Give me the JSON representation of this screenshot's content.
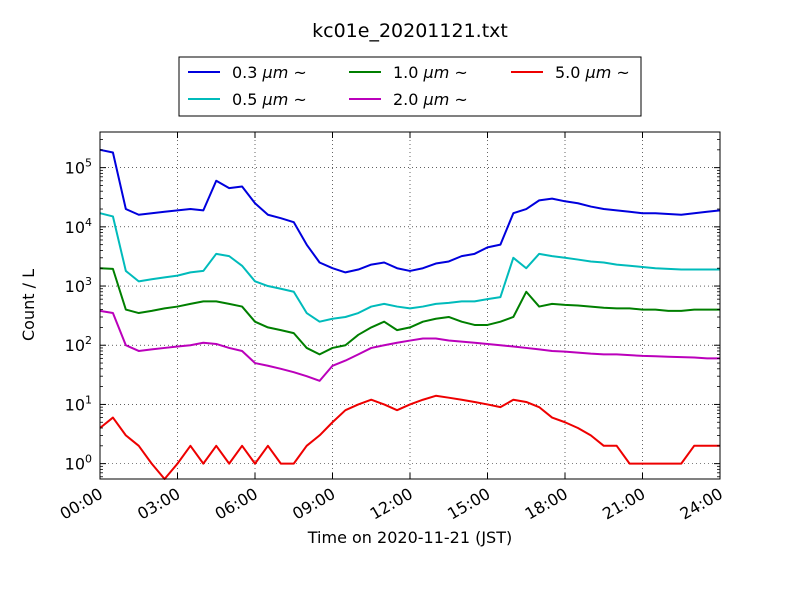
{
  "chart_data": {
    "type": "line",
    "title": "kc01e_20201121.txt",
    "xlabel": "Time on 2020-11-21 (JST)",
    "ylabel": "Count / L",
    "y_scale": "log",
    "ylim": [
      0.55,
      400000
    ],
    "xlim": [
      "00:00",
      "24:00"
    ],
    "x_ticks": [
      "00:00",
      "03:00",
      "06:00",
      "09:00",
      "12:00",
      "15:00",
      "18:00",
      "21:00",
      "24:00"
    ],
    "y_ticks": [
      {
        "value": 1,
        "base": "10",
        "exp": "0"
      },
      {
        "value": 10,
        "base": "10",
        "exp": "1"
      },
      {
        "value": 100,
        "base": "10",
        "exp": "2"
      },
      {
        "value": 1000,
        "base": "10",
        "exp": "3"
      },
      {
        "value": 10000,
        "base": "10",
        "exp": "4"
      },
      {
        "value": 100000,
        "base": "10",
        "exp": "5"
      }
    ],
    "grid": "dotted",
    "legend_placement": "top-center",
    "x": [
      "00:00",
      "00:30",
      "01:00",
      "01:30",
      "02:00",
      "02:30",
      "03:00",
      "03:30",
      "04:00",
      "04:30",
      "05:00",
      "05:30",
      "06:00",
      "06:30",
      "07:00",
      "07:30",
      "08:00",
      "08:30",
      "09:00",
      "09:30",
      "10:00",
      "10:30",
      "11:00",
      "11:30",
      "12:00",
      "12:30",
      "13:00",
      "13:30",
      "14:00",
      "14:30",
      "15:00",
      "15:30",
      "16:00",
      "16:30",
      "17:00",
      "17:30",
      "18:00",
      "18:30",
      "19:00",
      "19:30",
      "20:00",
      "20:30",
      "21:00",
      "21:30",
      "22:00",
      "22:30",
      "23:00",
      "23:30",
      "24:00"
    ],
    "series": [
      {
        "name": "0.3 μm ~",
        "unit_text": "μm",
        "size": "0.3",
        "color": "#0000dd",
        "values": [
          200000,
          180000,
          20000,
          16000,
          17000,
          18000,
          19000,
          20000,
          19000,
          60000,
          45000,
          48000,
          25000,
          16000,
          14000,
          12000,
          5000,
          2500,
          2000,
          1700,
          1900,
          2300,
          2500,
          2000,
          1800,
          2000,
          2400,
          2600,
          3200,
          3500,
          4500,
          5000,
          17000,
          20000,
          28000,
          30000,
          27000,
          25000,
          22000,
          20000,
          19000,
          18000,
          17000,
          17000,
          16500,
          16000,
          17000,
          18000,
          19000
        ]
      },
      {
        "name": "0.5 μm ~",
        "unit_text": "μm",
        "size": "0.5",
        "color": "#00bbbb",
        "values": [
          17000,
          15000,
          1800,
          1200,
          1300,
          1400,
          1500,
          1700,
          1800,
          3500,
          3200,
          2200,
          1200,
          1000,
          900,
          800,
          350,
          250,
          280,
          300,
          350,
          450,
          500,
          450,
          420,
          450,
          500,
          520,
          550,
          550,
          600,
          650,
          3000,
          2000,
          3500,
          3200,
          3000,
          2800,
          2600,
          2500,
          2300,
          2200,
          2100,
          2000,
          1950,
          1900,
          1900,
          1900,
          1900
        ]
      },
      {
        "name": "1.0 μm ~",
        "unit_text": "μm",
        "size": "1.0",
        "color": "#007f00",
        "values": [
          2000,
          1950,
          400,
          350,
          380,
          420,
          450,
          500,
          550,
          550,
          500,
          450,
          250,
          200,
          180,
          160,
          90,
          70,
          90,
          100,
          150,
          200,
          250,
          180,
          200,
          250,
          280,
          300,
          250,
          220,
          220,
          250,
          300,
          800,
          450,
          500,
          480,
          470,
          450,
          430,
          420,
          420,
          400,
          400,
          380,
          380,
          400,
          400,
          400
        ]
      },
      {
        "name": "2.0 μm ~",
        "unit_text": "μm",
        "size": "2.0",
        "color": "#bb00bb",
        "values": [
          380,
          350,
          100,
          80,
          85,
          90,
          95,
          100,
          110,
          105,
          90,
          80,
          50,
          45,
          40,
          35,
          30,
          25,
          45,
          55,
          70,
          90,
          100,
          110,
          120,
          130,
          130,
          120,
          115,
          110,
          105,
          100,
          95,
          90,
          85,
          80,
          78,
          75,
          72,
          70,
          70,
          68,
          66,
          65,
          64,
          63,
          62,
          60,
          60
        ]
      },
      {
        "name": "5.0 μm ~",
        "unit_text": "μm",
        "size": "5.0",
        "color": "#ee0000",
        "values": [
          4,
          6,
          3,
          2,
          1,
          0,
          1,
          2,
          1,
          2,
          1,
          2,
          1,
          2,
          1,
          1,
          2,
          3,
          5,
          8,
          10,
          12,
          10,
          8,
          10,
          12,
          14,
          13,
          12,
          11,
          10,
          9,
          12,
          11,
          9,
          6,
          5,
          4,
          3,
          2,
          2,
          1,
          1,
          1,
          1,
          1,
          2,
          2,
          2
        ]
      }
    ]
  }
}
